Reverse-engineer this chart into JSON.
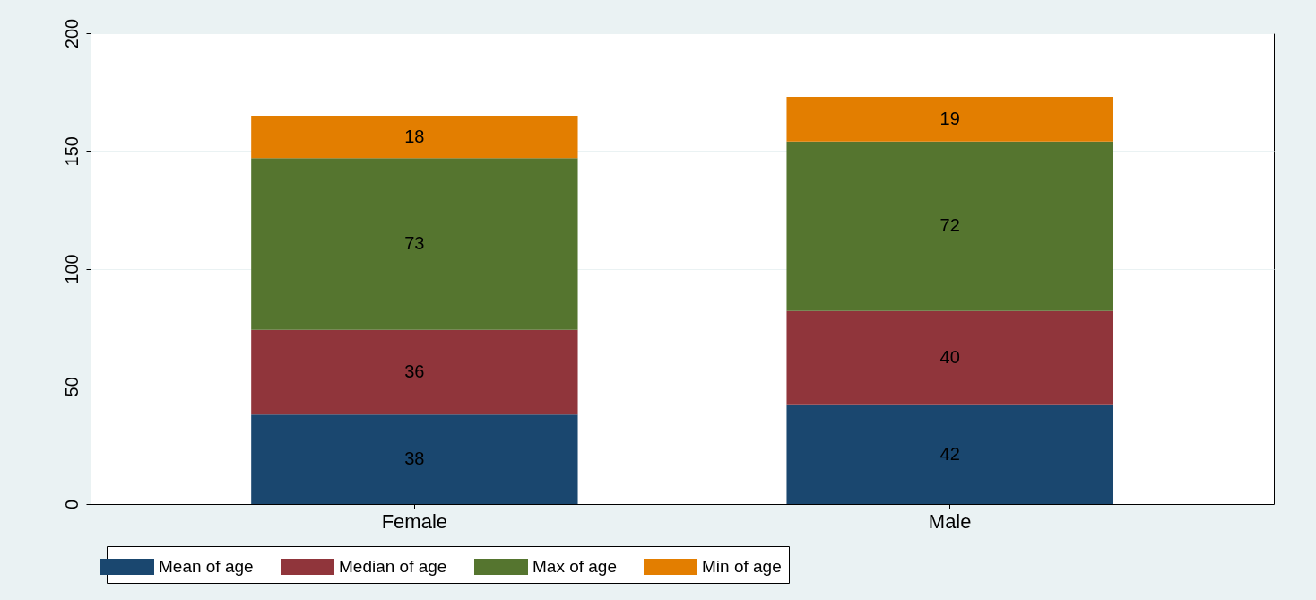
{
  "chart_data": {
    "type": "bar",
    "stacked": true,
    "categories": [
      "Female",
      "Male"
    ],
    "series": [
      {
        "name": "Mean of age",
        "color": "#1a476f",
        "values": [
          38,
          42
        ]
      },
      {
        "name": "Median of age",
        "color": "#90353b",
        "values": [
          36,
          40
        ]
      },
      {
        "name": "Max of age",
        "color": "#55752f",
        "values": [
          73,
          72
        ]
      },
      {
        "name": "Min of age",
        "color": "#e37e00",
        "values": [
          18,
          19
        ]
      }
    ],
    "ylim": [
      0,
      200
    ],
    "yticks": [
      0,
      50,
      100,
      150,
      200
    ],
    "grid": "y",
    "legend": "bottom",
    "data_labels": true
  }
}
